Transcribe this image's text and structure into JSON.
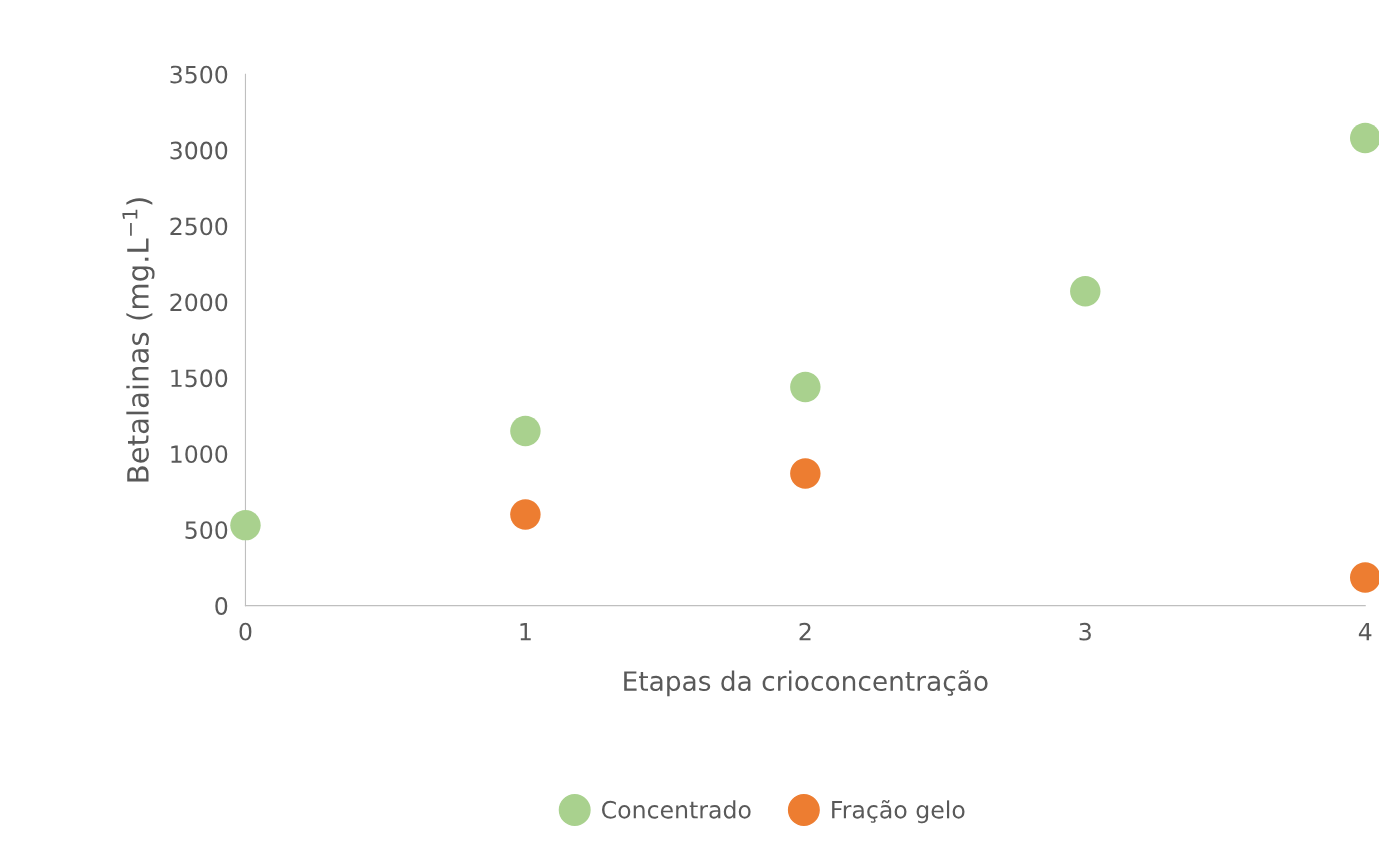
{
  "chart_data": {
    "type": "scatter",
    "xlabel": "Etapas da crioconcentração",
    "ylabel": "Betalainas (mg.L$^{−1}$)",
    "series": [
      {
        "name": "Concentrado",
        "color": "#a9d18e",
        "x": [
          0,
          1,
          2,
          3,
          4
        ],
        "values": [
          530,
          1150,
          1440,
          2070,
          3080
        ]
      },
      {
        "name": "Fração gelo",
        "color": "#ed7d31",
        "x": [
          1,
          2,
          4
        ],
        "values": [
          600,
          870,
          185
        ]
      }
    ],
    "xlim": [
      0,
      4
    ],
    "xticks": [
      0,
      1,
      2,
      3,
      4
    ],
    "ylim": [
      0,
      3500
    ],
    "yticks": [
      0,
      500,
      1000,
      1500,
      2000,
      2500,
      3000,
      3500
    ],
    "grid": false,
    "legend": "bottom",
    "marker": "circle"
  }
}
